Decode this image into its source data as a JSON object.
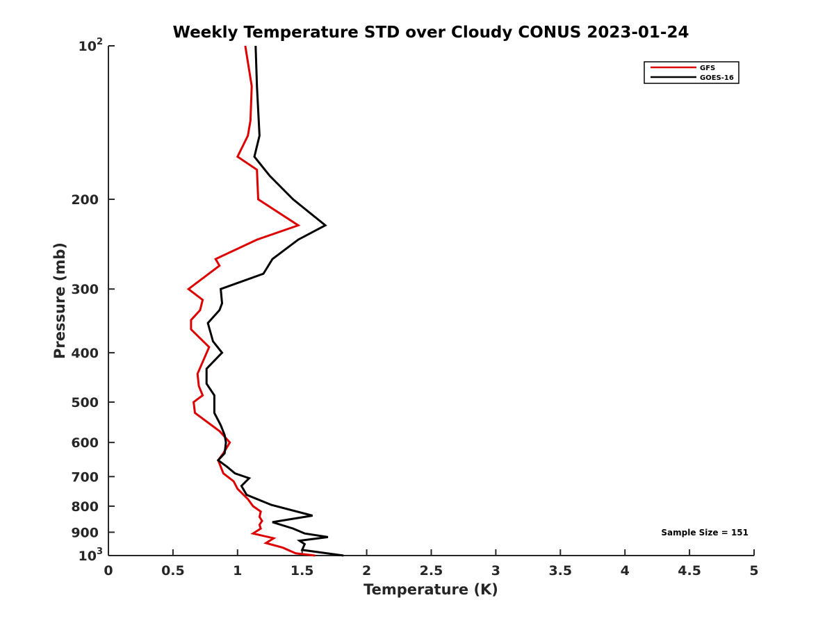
{
  "chart_data": {
    "type": "line",
    "title": "Weekly Temperature STD over Cloudy CONUS 2023-01-24",
    "xlabel": "Temperature (K)",
    "ylabel": "Pressure (mb)",
    "xlim": [
      0,
      5
    ],
    "ylim": [
      100,
      1000
    ],
    "y_scale": "log",
    "y_reversed": true,
    "grid": false,
    "legend_position": "top-right",
    "x_ticks": [
      "0",
      "0.5",
      "1",
      "1.5",
      "2",
      "2.5",
      "3",
      "3.5",
      "4",
      "4.5",
      "5"
    ],
    "y_ticks": [
      {
        "value": 100,
        "label": "10",
        "sup": "2"
      },
      {
        "value": 200,
        "label": "200",
        "sup": ""
      },
      {
        "value": 300,
        "label": "300",
        "sup": ""
      },
      {
        "value": 400,
        "label": "400",
        "sup": ""
      },
      {
        "value": 500,
        "label": "500",
        "sup": ""
      },
      {
        "value": 600,
        "label": "600",
        "sup": ""
      },
      {
        "value": 700,
        "label": "700",
        "sup": ""
      },
      {
        "value": 800,
        "label": "800",
        "sup": ""
      },
      {
        "value": 900,
        "label": "900",
        "sup": ""
      },
      {
        "value": 1000,
        "label": "10",
        "sup": "3"
      }
    ],
    "annotation": "Sample Size = 151",
    "series": [
      {
        "name": "GFS",
        "color": "#dd0000",
        "points": [
          [
            1.06,
            100
          ],
          [
            1.11,
            120
          ],
          [
            1.1,
            140
          ],
          [
            1.08,
            150
          ],
          [
            1.0,
            165
          ],
          [
            1.15,
            175
          ],
          [
            1.16,
            200
          ],
          [
            1.47,
            225
          ],
          [
            1.15,
            240
          ],
          [
            0.83,
            262
          ],
          [
            0.86,
            270
          ],
          [
            0.62,
            300
          ],
          [
            0.73,
            315
          ],
          [
            0.71,
            330
          ],
          [
            0.64,
            345
          ],
          [
            0.64,
            360
          ],
          [
            0.78,
            390
          ],
          [
            0.69,
            440
          ],
          [
            0.7,
            465
          ],
          [
            0.73,
            485
          ],
          [
            0.66,
            500
          ],
          [
            0.67,
            525
          ],
          [
            0.86,
            570
          ],
          [
            0.94,
            600
          ],
          [
            0.89,
            630
          ],
          [
            0.85,
            650
          ],
          [
            0.89,
            690
          ],
          [
            0.97,
            715
          ],
          [
            1.0,
            740
          ],
          [
            1.08,
            775
          ],
          [
            1.12,
            800
          ],
          [
            1.18,
            820
          ],
          [
            1.17,
            840
          ],
          [
            1.19,
            855
          ],
          [
            1.17,
            870
          ],
          [
            1.18,
            885
          ],
          [
            1.12,
            905
          ],
          [
            1.28,
            925
          ],
          [
            1.22,
            945
          ],
          [
            1.35,
            965
          ],
          [
            1.45,
            990
          ],
          [
            1.6,
            1000
          ]
        ]
      },
      {
        "name": "GOES-16",
        "color": "#000000",
        "points": [
          [
            1.14,
            100
          ],
          [
            1.15,
            120
          ],
          [
            1.17,
            150
          ],
          [
            1.13,
            165
          ],
          [
            1.25,
            180
          ],
          [
            1.43,
            200
          ],
          [
            1.68,
            225
          ],
          [
            1.47,
            240
          ],
          [
            1.27,
            262
          ],
          [
            1.2,
            280
          ],
          [
            0.87,
            300
          ],
          [
            0.88,
            320
          ],
          [
            0.86,
            330
          ],
          [
            0.77,
            350
          ],
          [
            0.81,
            380
          ],
          [
            0.88,
            400
          ],
          [
            0.76,
            430
          ],
          [
            0.76,
            460
          ],
          [
            0.82,
            485
          ],
          [
            0.82,
            525
          ],
          [
            0.87,
            555
          ],
          [
            0.9,
            580
          ],
          [
            0.91,
            600
          ],
          [
            0.9,
            630
          ],
          [
            0.85,
            650
          ],
          [
            0.92,
            670
          ],
          [
            0.98,
            690
          ],
          [
            1.09,
            705
          ],
          [
            1.03,
            730
          ],
          [
            1.07,
            760
          ],
          [
            1.26,
            795
          ],
          [
            1.58,
            835
          ],
          [
            1.27,
            860
          ],
          [
            1.43,
            885
          ],
          [
            1.52,
            905
          ],
          [
            1.7,
            920
          ],
          [
            1.48,
            935
          ],
          [
            1.52,
            950
          ],
          [
            1.5,
            975
          ],
          [
            1.82,
            1000
          ]
        ]
      }
    ]
  }
}
